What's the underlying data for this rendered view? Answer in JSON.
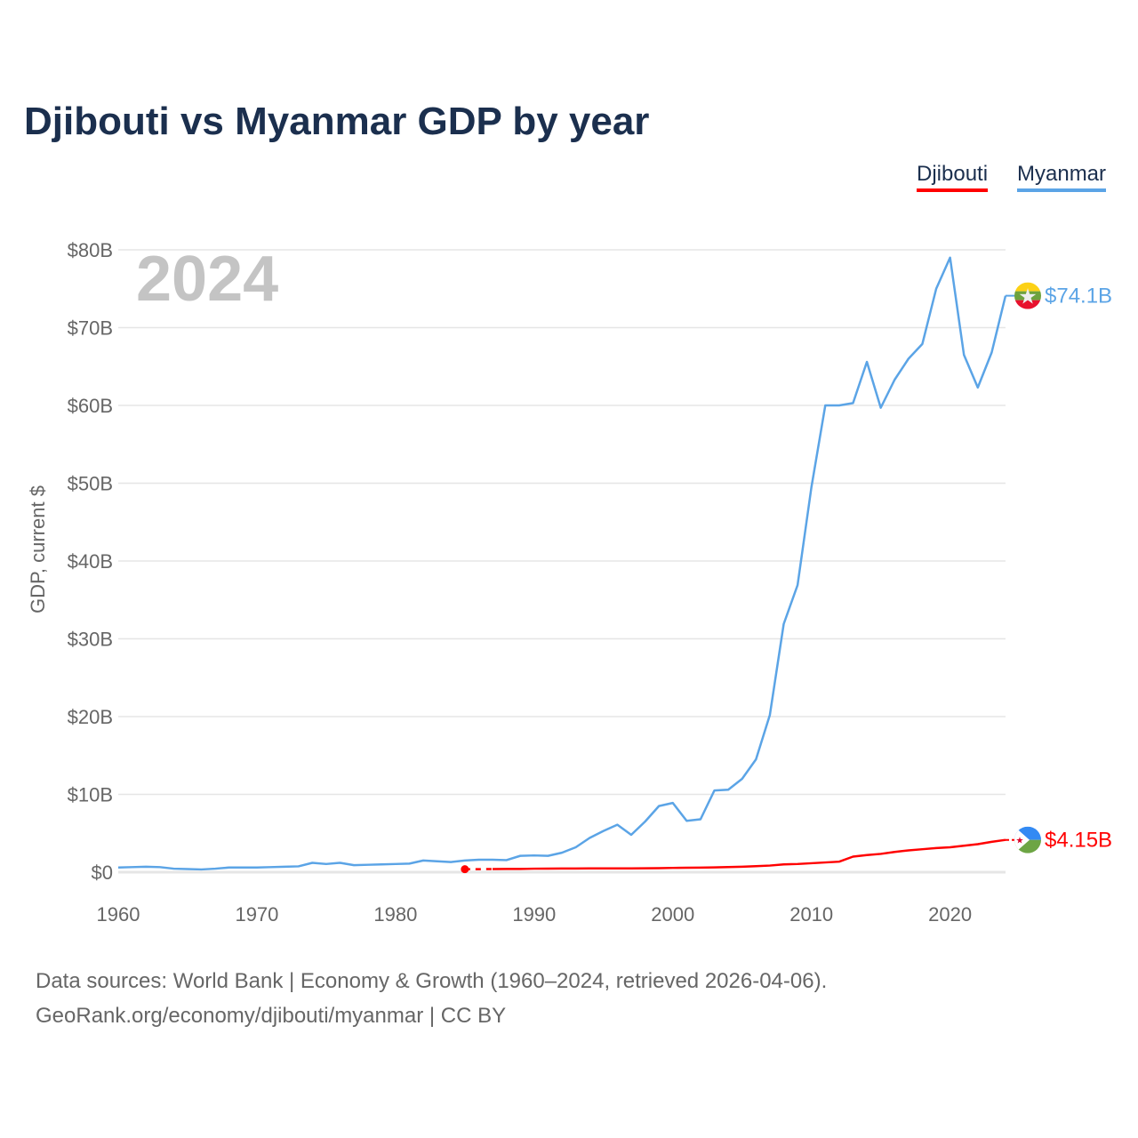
{
  "chart_data": {
    "type": "line",
    "title": "Djibouti vs Myanmar GDP by year",
    "ylabel": "GDP, current $",
    "xlabel": "",
    "year_watermark": "2024",
    "xlim": [
      1960,
      2024
    ],
    "ylim": [
      0,
      80
    ],
    "x_ticks": [
      1960,
      1970,
      1980,
      1990,
      2000,
      2010,
      2020
    ],
    "x_tick_labels": [
      "1960",
      "1970",
      "1980",
      "1990",
      "2000",
      "2010",
      "2020"
    ],
    "y_ticks": [
      0,
      10,
      20,
      30,
      40,
      50,
      60,
      70,
      80
    ],
    "y_tick_labels": [
      "$0",
      "$10B",
      "$20B",
      "$30B",
      "$40B",
      "$50B",
      "$60B",
      "$70B",
      "$80B"
    ],
    "grid": true,
    "legend_placement": "top-right",
    "series": [
      {
        "name": "Djibouti",
        "color": "#ff0000",
        "end_label": "$4.15B",
        "flag": "djibouti-flag",
        "x": [
          1985,
          1987,
          1988,
          1989,
          1990,
          1991,
          1992,
          1993,
          1994,
          1995,
          1996,
          1997,
          1998,
          1999,
          2000,
          2001,
          2002,
          2003,
          2004,
          2005,
          2006,
          2007,
          2008,
          2009,
          2010,
          2011,
          2012,
          2013,
          2014,
          2015,
          2016,
          2017,
          2018,
          2019,
          2020,
          2021,
          2022,
          2023,
          2024
        ],
        "values": [
          0.38,
          0.4,
          0.41,
          0.42,
          0.45,
          0.46,
          0.47,
          0.47,
          0.48,
          0.48,
          0.49,
          0.49,
          0.5,
          0.51,
          0.55,
          0.57,
          0.59,
          0.62,
          0.66,
          0.7,
          0.77,
          0.85,
          1.0,
          1.05,
          1.15,
          1.25,
          1.35,
          2.0,
          2.2,
          2.35,
          2.6,
          2.8,
          2.95,
          3.1,
          3.2,
          3.4,
          3.6,
          3.9,
          4.15
        ],
        "gap_after_first": true
      },
      {
        "name": "Myanmar",
        "color": "#5ba4e6",
        "end_label": "$74.1B",
        "flag": "myanmar-flag",
        "x": [
          1960,
          1961,
          1962,
          1963,
          1964,
          1965,
          1966,
          1967,
          1968,
          1969,
          1970,
          1971,
          1972,
          1973,
          1974,
          1975,
          1976,
          1977,
          1978,
          1979,
          1980,
          1981,
          1982,
          1983,
          1984,
          1985,
          1986,
          1987,
          1988,
          1989,
          1990,
          1991,
          1992,
          1993,
          1994,
          1995,
          1996,
          1997,
          1998,
          1999,
          2000,
          2001,
          2002,
          2003,
          2004,
          2005,
          2006,
          2007,
          2008,
          2009,
          2010,
          2011,
          2012,
          2013,
          2014,
          2015,
          2016,
          2017,
          2018,
          2019,
          2020,
          2021,
          2022,
          2023,
          2024
        ],
        "values": [
          0.6,
          0.65,
          0.7,
          0.65,
          0.45,
          0.4,
          0.35,
          0.45,
          0.6,
          0.6,
          0.6,
          0.65,
          0.7,
          0.75,
          1.2,
          1.05,
          1.2,
          0.9,
          0.95,
          1.0,
          1.05,
          1.1,
          1.5,
          1.4,
          1.3,
          1.5,
          1.6,
          1.6,
          1.55,
          2.1,
          2.15,
          2.1,
          2.5,
          3.2,
          4.4,
          5.3,
          6.1,
          4.8,
          6.5,
          8.5,
          8.9,
          6.6,
          6.8,
          10.5,
          10.6,
          12.0,
          14.5,
          20.2,
          31.9,
          36.9,
          49.5,
          60.0,
          60.0,
          60.3,
          65.6,
          59.7,
          63.3,
          66.0,
          67.9,
          75.0,
          79.0,
          66.5,
          62.3,
          66.8,
          74.1
        ]
      }
    ]
  },
  "legend": {
    "djibouti": "Djibouti",
    "myanmar": "Myanmar"
  },
  "footer": {
    "line1": "Data sources: World Bank | Economy & Growth (1960–2024, retrieved 2026-04-06).",
    "line2": "GeoRank.org/economy/djibouti/myanmar | CC BY"
  }
}
